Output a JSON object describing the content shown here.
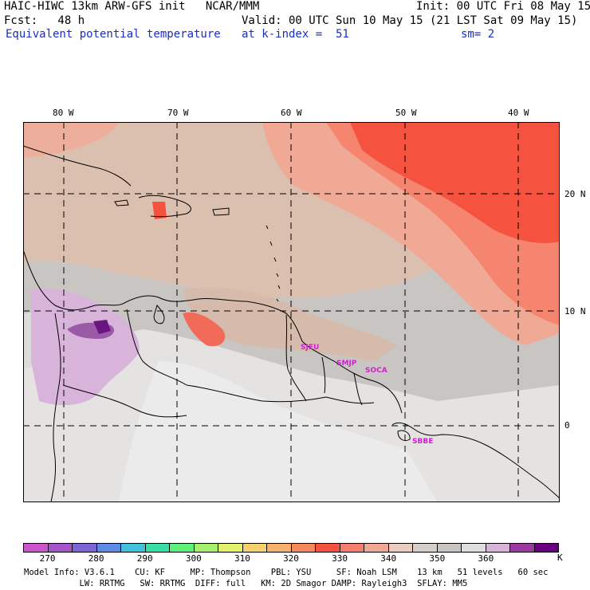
{
  "header": {
    "line1_left": "HAIC-HIWC 13km ARW-GFS init   NCAR/MMM",
    "line1_right": "Init: 00 UTC Fri 08 May 15",
    "fcst": "Fcst:   48 h",
    "valid": "Valid: 00 UTC Sun 10 May 15 (21 LST Sat 09 May 15)",
    "field": "Equivalent potential temperature",
    "level": "at k-index =  51",
    "smoothing": "sm= 2"
  },
  "map": {
    "lon_labels": [
      "80 W",
      "70 W",
      "60 W",
      "50 W",
      "40 W"
    ],
    "lat_labels": [
      "20 N",
      "10 N",
      "0"
    ],
    "stations": [
      "SJEU",
      "SMJP",
      "SOCA",
      "SBBE"
    ],
    "colors": {
      "gray_bg": "#c9c5c3",
      "light_gray": "#e8e8e8",
      "tan": "#e0beab",
      "salmon": "#f0a995",
      "orange_red": "#f57f6e",
      "red": "#f5523f",
      "lavender": "#d8b4da",
      "purple": "#9a5aa6",
      "dark_purple": "#6a1580"
    }
  },
  "colorbar": {
    "colors": [
      "#cc55cc",
      "#a855cc",
      "#7f64d6",
      "#5c8ce6",
      "#44c2dd",
      "#38e0a8",
      "#5ef07a",
      "#a6f06e",
      "#e3f26c",
      "#f5d26e",
      "#f6b26c",
      "#f58a5c",
      "#f5523f",
      "#f57f6e",
      "#f0a995",
      "#ecccbe",
      "#d7cfca",
      "#c9c5c3",
      "#dedede",
      "#d8b4da",
      "#9a3aa0",
      "#6a0080"
    ],
    "labels": [
      "270",
      "280",
      "290",
      "300",
      "310",
      "320",
      "330",
      "340",
      "350",
      "360"
    ],
    "unit": "K"
  },
  "footer": {
    "line1": "Model Info: V3.6.1    CU: KF     MP: Thompson    PBL: YSU     SF: Noah LSM    13 km   51 levels   60 sec",
    "line2": "           LW: RRTMG   SW: RRTMG  DIFF: full   KM: 2D Smagor DAMP: Rayleigh3  SFLAY: MM5"
  }
}
